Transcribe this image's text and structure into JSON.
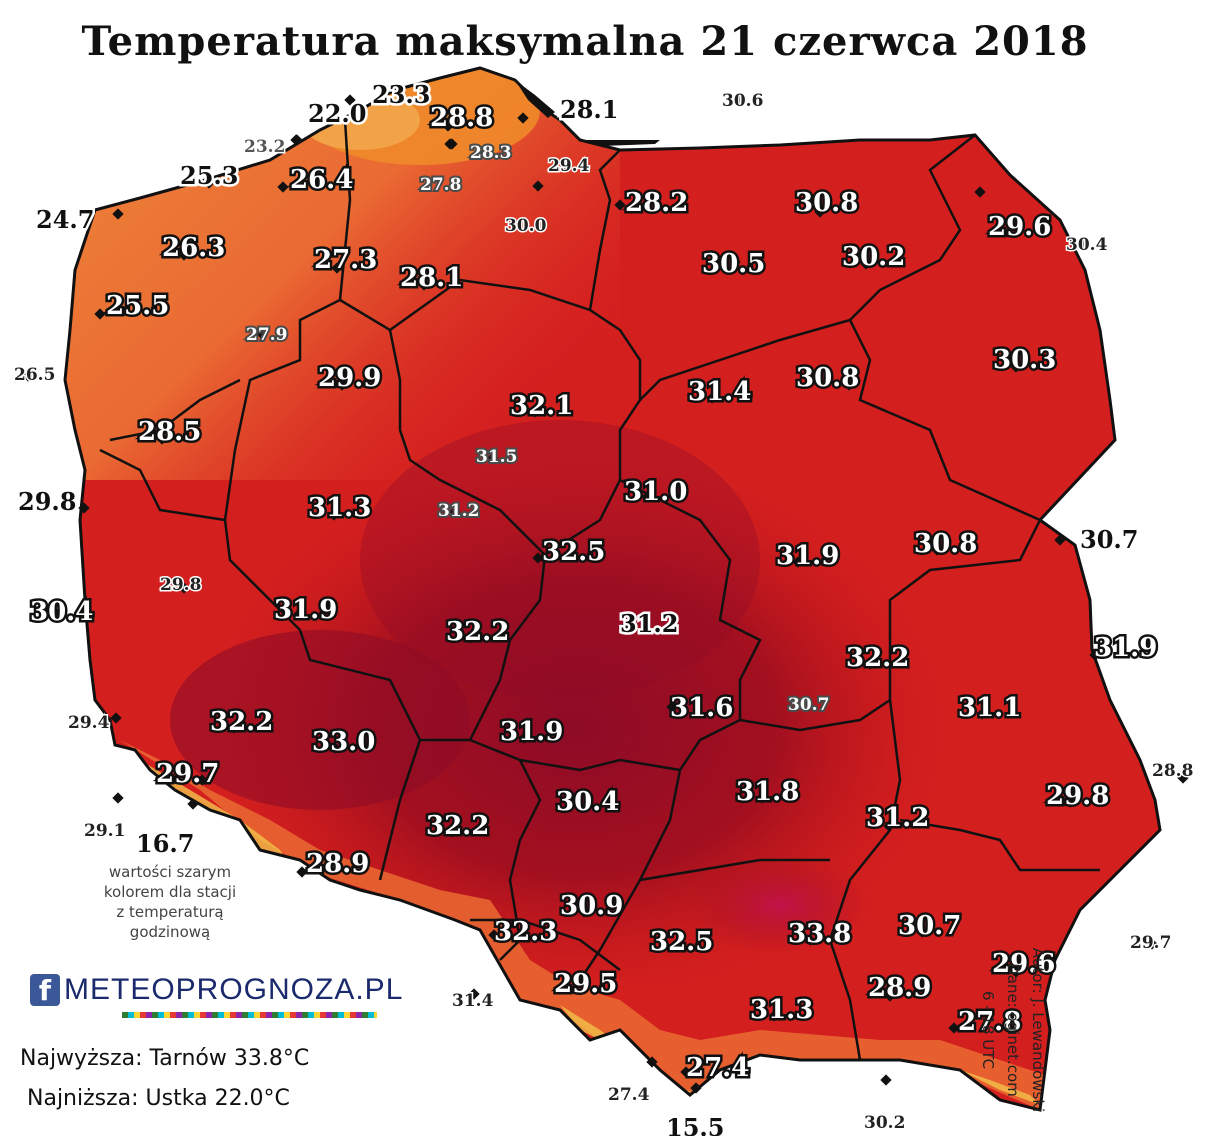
{
  "title": "Temperatura maksymalna 21 czerwca 2018",
  "colors": {
    "border": "#111111",
    "cool": "#ee8a3a",
    "mild": "#e7462e",
    "warm": "#d41f1f",
    "hot": "#b7141c",
    "hottest": "#8e0b27",
    "peak": "#c2134a",
    "mountain": "#f3a64a"
  },
  "stations": [
    {
      "value": "23.3",
      "style": "big"
    },
    {
      "value": "22.0",
      "style": "big"
    },
    {
      "value": "28.8",
      "style": "white-bold"
    },
    {
      "value": "28.1",
      "style": "big"
    },
    {
      "value": "30.6",
      "style": "dark-small"
    },
    {
      "value": "23.2",
      "style": "gray-plain"
    },
    {
      "value": "28.3",
      "style": "gray-small"
    },
    {
      "value": "29.4",
      "style": "dark-small"
    },
    {
      "value": "25.3",
      "style": "big"
    },
    {
      "value": "26.4",
      "style": "white-bold"
    },
    {
      "value": "27.8",
      "style": "gray-small"
    },
    {
      "value": "30.0",
      "style": "dark-small"
    },
    {
      "value": "28.2",
      "style": "white-bold"
    },
    {
      "value": "30.8",
      "style": "white-bold"
    },
    {
      "value": "29.6",
      "style": "white-bold"
    },
    {
      "value": "24.7",
      "style": "big"
    },
    {
      "value": "30.4",
      "style": "dark-small"
    },
    {
      "value": "26.3",
      "style": "white-bold"
    },
    {
      "value": "27.3",
      "style": "white-bold"
    },
    {
      "value": "30.5",
      "style": "white-bold"
    },
    {
      "value": "30.2",
      "style": "white-bold"
    },
    {
      "value": "28.1",
      "style": "white-bold"
    },
    {
      "value": "25.5",
      "style": "white-bold"
    },
    {
      "value": "27.9",
      "style": "gray-small"
    },
    {
      "value": "30.3",
      "style": "white-bold"
    },
    {
      "value": "26.5",
      "style": "dark-small"
    },
    {
      "value": "29.9",
      "style": "white-bold"
    },
    {
      "value": "30.8",
      "style": "white-bold"
    },
    {
      "value": "31.4",
      "style": "white-bold"
    },
    {
      "value": "32.1",
      "style": "white-bold"
    },
    {
      "value": "28.5",
      "style": "white-bold"
    },
    {
      "value": "31.5",
      "style": "gray-small"
    },
    {
      "value": "29.8",
      "style": "big"
    },
    {
      "value": "31.0",
      "style": "white-bold"
    },
    {
      "value": "31.3",
      "style": "white-bold"
    },
    {
      "value": "31.2",
      "style": "gray-small"
    },
    {
      "value": "30.7",
      "style": "big"
    },
    {
      "value": "32.5",
      "style": "white-bold"
    },
    {
      "value": "30.8",
      "style": "white-bold"
    },
    {
      "value": "31.9",
      "style": "white-bold"
    },
    {
      "value": "30.4",
      "style": "white-bold"
    },
    {
      "value": "29.8",
      "style": "dark-small"
    },
    {
      "value": "31.9",
      "style": "white-bold"
    },
    {
      "value": "32.2",
      "style": "white-bold"
    },
    {
      "value": "31.9",
      "style": "white-bold"
    },
    {
      "value": "31.2",
      "style": "big"
    },
    {
      "value": "32.2",
      "style": "white-bold"
    },
    {
      "value": "31.6",
      "style": "white-bold"
    },
    {
      "value": "30.7",
      "style": "gray-small"
    },
    {
      "value": "31.1",
      "style": "white-bold"
    },
    {
      "value": "29.4",
      "style": "dark-small"
    },
    {
      "value": "32.2",
      "style": "white-bold"
    },
    {
      "value": "33.0",
      "style": "white-bold"
    },
    {
      "value": "31.9",
      "style": "white-bold"
    },
    {
      "value": "29.7",
      "style": "white-bold"
    },
    {
      "value": "31.8",
      "style": "white-bold"
    },
    {
      "value": "28.8",
      "style": "dark-small"
    },
    {
      "value": "30.4",
      "style": "white-bold"
    },
    {
      "value": "29.8",
      "style": "white-bold"
    },
    {
      "value": "29.1",
      "style": "dark-small"
    },
    {
      "value": "16.7",
      "style": "big"
    },
    {
      "value": "31.2",
      "style": "white-bold"
    },
    {
      "value": "32.2",
      "style": "white-bold"
    },
    {
      "value": "28.9",
      "style": "white-bold"
    },
    {
      "value": "30.9",
      "style": "white-bold"
    },
    {
      "value": "32.3",
      "style": "white-bold"
    },
    {
      "value": "30.7",
      "style": "white-bold"
    },
    {
      "value": "32.5",
      "style": "white-bold"
    },
    {
      "value": "33.8",
      "style": "white-bold"
    },
    {
      "value": "29.7",
      "style": "dark-small"
    },
    {
      "value": "29.6",
      "style": "white-bold"
    },
    {
      "value": "29.5",
      "style": "white-bold"
    },
    {
      "value": "28.9",
      "style": "white-bold"
    },
    {
      "value": "31.4",
      "style": "dark-small"
    },
    {
      "value": "31.3",
      "style": "white-bold"
    },
    {
      "value": "27.8",
      "style": "white-bold"
    },
    {
      "value": "27.4",
      "style": "white-bold"
    },
    {
      "value": "27.4",
      "style": "dark-small"
    },
    {
      "value": "30.2",
      "style": "dark-small"
    },
    {
      "value": "15.5",
      "style": "big"
    }
  ],
  "note": [
    "wartości szarym",
    "kolorem dla stacji",
    "z temperaturą",
    "godzinową"
  ],
  "logo": {
    "fb": "f",
    "text": "METEOPROGNOZA.PL"
  },
  "summary": {
    "max": "Najwyższa: Tarnów 33.8°C",
    "min": "Najniższa: Ustka 22.0°C"
  },
  "credits": [
    "Autor: J. Lewandowski",
    "Dane: oginet.com",
    "6 - 18 UTC"
  ]
}
